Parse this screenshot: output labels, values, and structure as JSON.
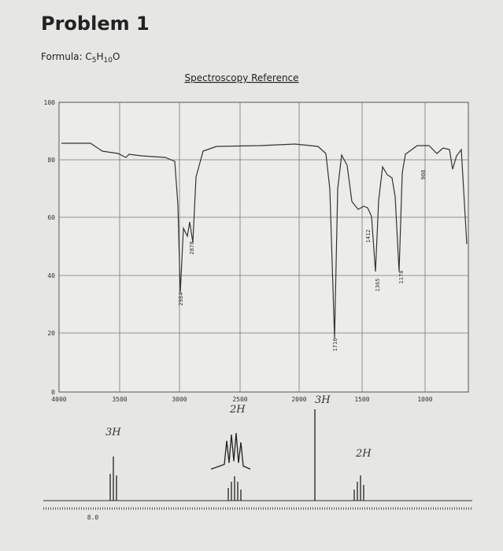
{
  "header": {
    "title": "Problem 1",
    "formula": {
      "label": "Formula: ",
      "parts": [
        "C",
        "5",
        "H",
        "10",
        "O"
      ]
    }
  },
  "reference_title": "Spectroscopy Reference",
  "ir": {
    "y_labels": [
      "100",
      "80",
      "60",
      "40",
      "20",
      "0"
    ],
    "x_labels": [
      "4000",
      "3500",
      "3000",
      "2500",
      "2000",
      "1500",
      "1000"
    ],
    "peak_labels": [
      "2984",
      "2878",
      "1716",
      "1412",
      "1365",
      "1178",
      "908"
    ]
  },
  "nmr": {
    "annotations": [
      "3H",
      "2H",
      "3H",
      "2H"
    ],
    "x_labels": [
      "8.0"
    ]
  }
}
